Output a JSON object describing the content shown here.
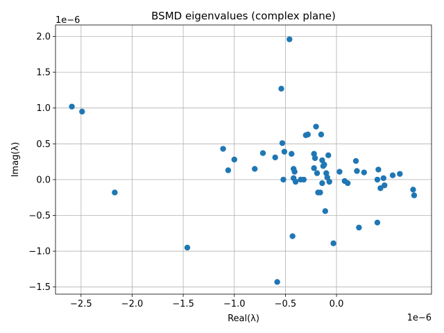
{
  "chart_data": {
    "type": "scatter",
    "title": "BSMD eigenvalues (complex plane)",
    "xlabel": "Real(λ)",
    "ylabel": "Imag(λ)",
    "x_offset_label": "1e−6",
    "y_offset_label": "1e−6",
    "xlim": [
      -2.75,
      0.93
    ],
    "ylim": [
      -1.6,
      2.16
    ],
    "grid": true,
    "color": "#1f77b4",
    "xticks": [
      -2.5,
      -2.0,
      -1.5,
      -1.0,
      -0.5,
      0.0
    ],
    "xtick_labels": [
      "−2.5",
      "−2.0",
      "−1.5",
      "−1.0",
      "−0.5",
      "0.0"
    ],
    "yticks": [
      -1.5,
      -1.0,
      -0.5,
      0.0,
      0.5,
      1.0,
      1.5,
      2.0
    ],
    "ytick_labels": [
      "−1.5",
      "−1.0",
      "−0.5",
      "0.0",
      "0.5",
      "1.0",
      "1.5",
      "2.0"
    ],
    "points": [
      {
        "x": -2.59,
        "y": 1.02
      },
      {
        "x": -2.49,
        "y": 0.95
      },
      {
        "x": -2.17,
        "y": -0.18
      },
      {
        "x": -1.46,
        "y": -0.95
      },
      {
        "x": -1.11,
        "y": 0.43
      },
      {
        "x": -1.06,
        "y": 0.13
      },
      {
        "x": -1.0,
        "y": 0.28
      },
      {
        "x": -0.8,
        "y": 0.15
      },
      {
        "x": -0.72,
        "y": 0.37
      },
      {
        "x": -0.6,
        "y": 0.31
      },
      {
        "x": -0.58,
        "y": -1.43
      },
      {
        "x": -0.54,
        "y": 1.27
      },
      {
        "x": -0.53,
        "y": 0.51
      },
      {
        "x": -0.52,
        "y": 0.0
      },
      {
        "x": -0.51,
        "y": 0.39
      },
      {
        "x": -0.46,
        "y": 1.96
      },
      {
        "x": -0.44,
        "y": 0.36
      },
      {
        "x": -0.43,
        "y": -0.79
      },
      {
        "x": -0.42,
        "y": 0.15
      },
      {
        "x": -0.42,
        "y": 0.02
      },
      {
        "x": -0.41,
        "y": 0.11
      },
      {
        "x": -0.4,
        "y": -0.03
      },
      {
        "x": -0.35,
        "y": 0.0
      },
      {
        "x": -0.32,
        "y": 0.0
      },
      {
        "x": -0.3,
        "y": 0.62
      },
      {
        "x": -0.28,
        "y": 0.63
      },
      {
        "x": -0.22,
        "y": 0.36
      },
      {
        "x": -0.22,
        "y": 0.16
      },
      {
        "x": -0.21,
        "y": 0.3
      },
      {
        "x": -0.2,
        "y": 0.74
      },
      {
        "x": -0.19,
        "y": 0.09
      },
      {
        "x": -0.18,
        "y": -0.18
      },
      {
        "x": -0.16,
        "y": -0.18
      },
      {
        "x": -0.15,
        "y": 0.63
      },
      {
        "x": -0.14,
        "y": 0.27
      },
      {
        "x": -0.14,
        "y": -0.05
      },
      {
        "x": -0.13,
        "y": 0.19
      },
      {
        "x": -0.12,
        "y": 0.21
      },
      {
        "x": -0.11,
        "y": -0.44
      },
      {
        "x": -0.1,
        "y": 0.09
      },
      {
        "x": -0.09,
        "y": 0.03
      },
      {
        "x": -0.08,
        "y": 0.34
      },
      {
        "x": -0.07,
        "y": -0.03
      },
      {
        "x": -0.03,
        "y": -0.89
      },
      {
        "x": 0.03,
        "y": 0.11
      },
      {
        "x": 0.08,
        "y": -0.02
      },
      {
        "x": 0.11,
        "y": -0.05
      },
      {
        "x": 0.19,
        "y": 0.26
      },
      {
        "x": 0.2,
        "y": 0.12
      },
      {
        "x": 0.22,
        "y": -0.67
      },
      {
        "x": 0.27,
        "y": 0.1
      },
      {
        "x": 0.4,
        "y": -0.6
      },
      {
        "x": 0.4,
        "y": 0.0
      },
      {
        "x": 0.41,
        "y": 0.14
      },
      {
        "x": 0.43,
        "y": -0.12
      },
      {
        "x": 0.46,
        "y": 0.02
      },
      {
        "x": 0.47,
        "y": -0.08
      },
      {
        "x": 0.55,
        "y": 0.06
      },
      {
        "x": 0.62,
        "y": 0.08
      },
      {
        "x": 0.75,
        "y": -0.14
      },
      {
        "x": 0.76,
        "y": -0.22
      }
    ]
  }
}
